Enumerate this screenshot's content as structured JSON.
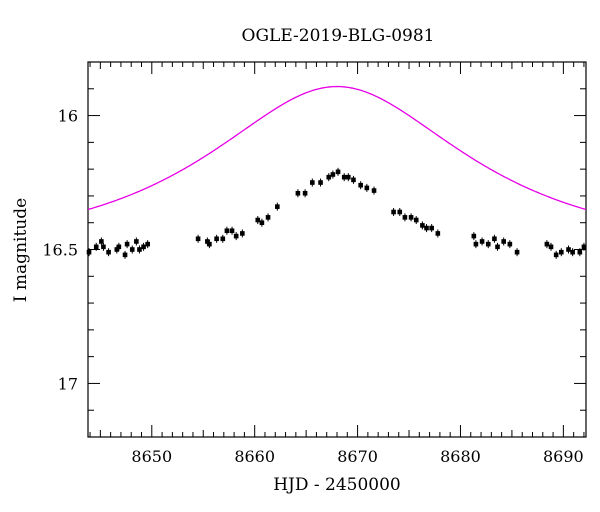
{
  "chart_data": {
    "type": "scatter",
    "title": "OGLE-2019-BLG-0981",
    "xlabel": "HJD - 2450000",
    "ylabel": "I magnitude",
    "xlim": [
      8643.8,
      8692.2
    ],
    "ylim": [
      17.2,
      15.8
    ],
    "y_inverted": true,
    "grid": false,
    "xticks_major": [
      8650,
      8660,
      8670,
      8680,
      8690
    ],
    "yticks_major": [
      16,
      16.5,
      17
    ],
    "xtick_labels": [
      "8650",
      "8660",
      "8670",
      "8680",
      "8690"
    ],
    "ytick_labels": [
      "16",
      "16.5",
      "17"
    ],
    "series": [
      {
        "kind": "points",
        "color": "#000000",
        "x": [
          8643.9,
          8644.6,
          8645.1,
          8645.3,
          8645.8,
          8646.6,
          8646.8,
          8647.4,
          8647.6,
          8648.1,
          8648.5,
          8648.8,
          8649.2,
          8649.6,
          8654.5,
          8655.4,
          8655.6,
          8656.3,
          8656.9,
          8657.3,
          8657.8,
          8658.2,
          8658.8,
          8660.3,
          8660.7,
          8661.3,
          8662.2,
          8664.2,
          8664.9,
          8665.6,
          8666.4,
          8667.2,
          8667.6,
          8668.1,
          8668.7,
          8669.1,
          8669.6,
          8670.3,
          8670.9,
          8671.6,
          8673.5,
          8674.1,
          8674.6,
          8675.2,
          8675.7,
          8676.3,
          8676.7,
          8677.2,
          8677.8,
          8681.3,
          8681.5,
          8682.1,
          8682.7,
          8683.3,
          8683.6,
          8684.2,
          8684.8,
          8685.5,
          8688.4,
          8688.8,
          8689.3,
          8689.8,
          8690.5,
          8690.9,
          8691.6,
          8692.0
        ],
        "y": [
          16.51,
          16.49,
          16.47,
          16.49,
          16.51,
          16.5,
          16.49,
          16.52,
          16.48,
          16.5,
          16.47,
          16.5,
          16.49,
          16.48,
          16.46,
          16.47,
          16.48,
          16.46,
          16.46,
          16.43,
          16.43,
          16.45,
          16.44,
          16.39,
          16.4,
          16.38,
          16.34,
          16.29,
          16.29,
          16.25,
          16.25,
          16.23,
          16.22,
          16.21,
          16.23,
          16.23,
          16.24,
          16.26,
          16.27,
          16.28,
          16.36,
          16.36,
          16.38,
          16.38,
          16.39,
          16.41,
          16.42,
          16.42,
          16.44,
          16.45,
          16.48,
          16.47,
          16.48,
          16.46,
          16.49,
          16.47,
          16.48,
          16.51,
          16.48,
          16.49,
          16.52,
          16.51,
          16.5,
          16.51,
          16.51,
          16.49
        ]
      },
      {
        "kind": "model-line",
        "color": "#e600e6",
        "t0": 8668.0,
        "tE": 20.0,
        "u0": 0.6,
        "baseline_mag": 16.5,
        "fs": 0.85
      }
    ]
  }
}
